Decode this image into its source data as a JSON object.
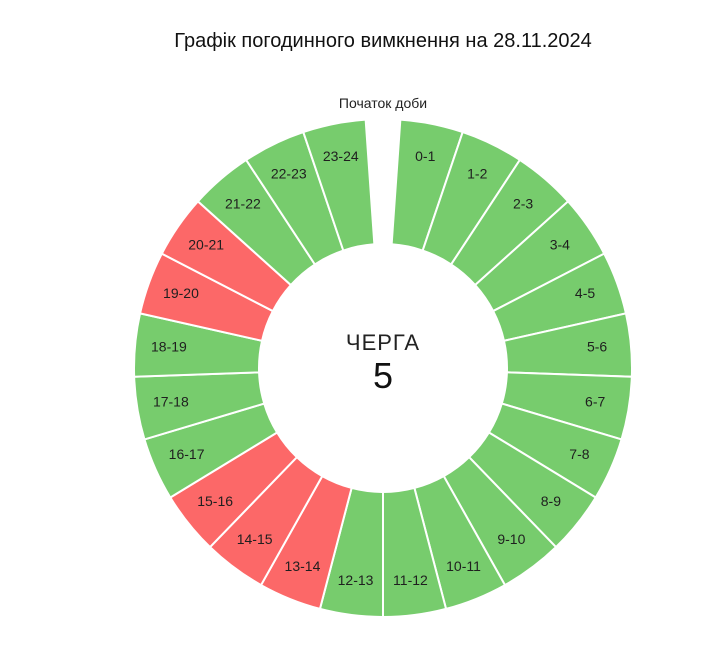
{
  "header": {
    "title": "Графік погодинного вимкнення на 28.11.2024"
  },
  "start_label": "Початок доби",
  "center": {
    "caption": "ЧЕРГА",
    "queue_number": "5"
  },
  "colors": {
    "power_on": "#77cc6d",
    "power_off": "#fc6868",
    "separator": "#ffffff"
  },
  "chart_data": {
    "type": "pie",
    "variant": "donut",
    "title": "Графік погодинного вимкнення на 28.11.2024",
    "annotation": "Початок доби",
    "center_text": [
      "ЧЕРГА",
      "5"
    ],
    "categories": [
      "0-1",
      "1-2",
      "2-3",
      "3-4",
      "4-5",
      "5-6",
      "6-7",
      "7-8",
      "8-9",
      "9-10",
      "10-11",
      "11-12",
      "12-13",
      "13-14",
      "14-15",
      "15-16",
      "16-17",
      "17-18",
      "18-19",
      "19-20",
      "20-21",
      "21-22",
      "22-23",
      "23-24"
    ],
    "values": [
      1,
      1,
      1,
      1,
      1,
      1,
      1,
      1,
      1,
      1,
      1,
      1,
      1,
      1,
      1,
      1,
      1,
      1,
      1,
      1,
      1,
      1,
      1,
      1
    ],
    "status": [
      "on",
      "on",
      "on",
      "on",
      "on",
      "on",
      "on",
      "on",
      "on",
      "on",
      "on",
      "on",
      "on",
      "off",
      "off",
      "off",
      "on",
      "on",
      "on",
      "off",
      "off",
      "on",
      "on",
      "on"
    ],
    "legend": {
      "on": "#77cc6d",
      "off": "#fc6868"
    }
  }
}
